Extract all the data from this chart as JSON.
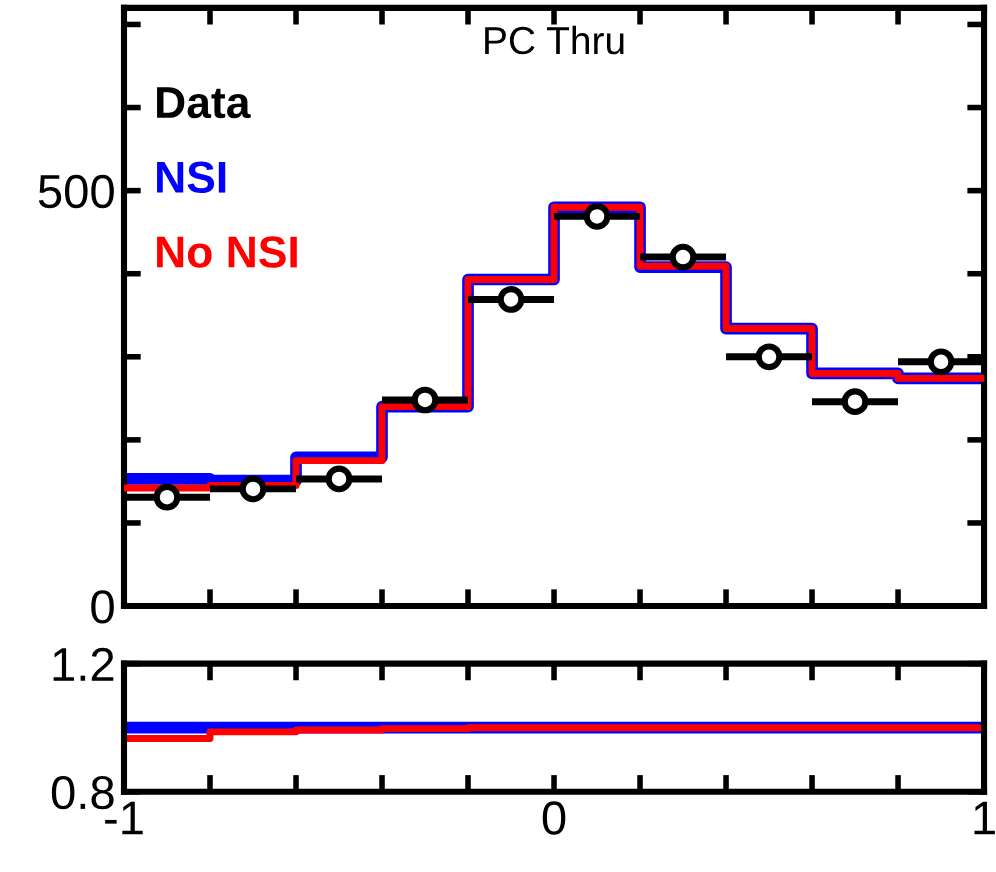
{
  "chart_data": [
    {
      "type": "histogram",
      "title": "PC Thru",
      "legend": "top left",
      "tick_labels": "y",
      "xlim": [
        -1,
        1
      ],
      "ylim": [
        0,
        720
      ],
      "bins": [
        -1,
        -0.8,
        -0.6,
        -0.4,
        -0.2,
        0,
        0.2,
        0.4,
        0.6,
        0.8,
        1
      ],
      "xticks": [
        {
          "value": -1,
          "label": null
        },
        {
          "value": -0.8,
          "label": null
        },
        {
          "value": -0.6,
          "label": null
        },
        {
          "value": -0.4,
          "label": null
        },
        {
          "value": -0.2,
          "label": null
        },
        {
          "value": 0,
          "label": null
        },
        {
          "value": 0.2,
          "label": null
        },
        {
          "value": 0.4,
          "label": null
        },
        {
          "value": 0.6,
          "label": null
        },
        {
          "value": 0.8,
          "label": null
        },
        {
          "value": 1,
          "label": null
        }
      ],
      "yticks": [
        0,
        {
          "value": 100,
          "label": null
        },
        {
          "value": 200,
          "label": null
        },
        {
          "value": 300,
          "label": null
        },
        {
          "value": 400,
          "label": null
        },
        500,
        {
          "value": 600,
          "label": null
        },
        {
          "value": 700,
          "label": null
        }
      ],
      "series": [
        {
          "name": "Data",
          "type": "scatter",
          "color": "#000000",
          "marker": "circle",
          "x": [
            -0.9,
            -0.7,
            -0.5,
            -0.3,
            -0.1,
            0.1,
            0.3,
            0.5,
            0.7,
            0.9
          ],
          "values": [
            131,
            141,
            153,
            248,
            369,
            469,
            420,
            300,
            246,
            294
          ],
          "xerrors": [
            0.1,
            0.1,
            0.1,
            0.1,
            0.1,
            0.1,
            0.1,
            0.1,
            0.1,
            0.1
          ]
        },
        {
          "name": "NSI",
          "color": "#0000ff",
          "values": [
            153,
            151,
            179,
            240,
            393,
            480,
            408,
            334,
            280,
            274
          ]
        },
        {
          "name": "No NSI",
          "color": "#ff0000",
          "values": [
            142,
            145,
            175,
            240,
            393,
            480,
            409,
            334,
            280,
            274
          ]
        }
      ]
    },
    {
      "type": "histogram",
      "xlim": [
        -1,
        1
      ],
      "ylim": [
        0.8,
        1.2
      ],
      "bins": [
        -1,
        -0.8,
        -0.6,
        -0.4,
        -0.2,
        0,
        0.2,
        0.4,
        0.6,
        0.8,
        1
      ],
      "xticks": [
        -1,
        {
          "value": -0.8,
          "label": null
        },
        {
          "value": -0.6,
          "label": null
        },
        {
          "value": -0.4,
          "label": null
        },
        {
          "value": -0.2,
          "label": null
        },
        0,
        {
          "value": 0.2,
          "label": null
        },
        {
          "value": 0.4,
          "label": null
        },
        {
          "value": 0.6,
          "label": null
        },
        {
          "value": 0.8,
          "label": null
        },
        1
      ],
      "yticks": [
        0.8,
        1.2
      ],
      "series": [
        {
          "color": "#0000ff",
          "values": [
            1.0,
            1.0,
            1.0,
            1.0,
            1.0,
            1.0,
            1.0,
            1.0,
            1.0,
            1.0
          ]
        },
        {
          "color": "#ff0000",
          "values": [
            0.966,
            0.987,
            0.993,
            0.997,
            1.0,
            1.0,
            1.0,
            1.0,
            1.0,
            1.0
          ]
        }
      ]
    }
  ]
}
